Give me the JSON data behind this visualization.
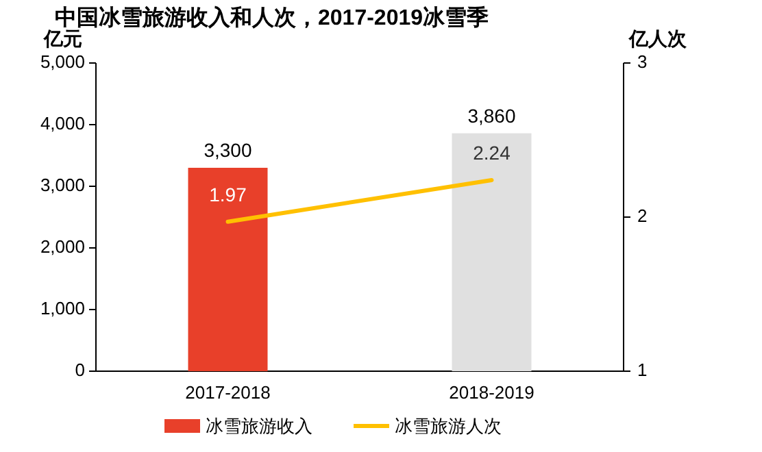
{
  "chart_data": {
    "type": "bar",
    "title": "中国冰雪旅游收入和人次，2017-2019冰雪季",
    "ylabel": "亿元",
    "y2label": "亿人次",
    "categories": [
      "2017-2018",
      "2018-2019"
    ],
    "series": [
      {
        "name": "冰雪旅游收入",
        "type": "bar",
        "color": "#e8402a",
        "colors": [
          "#e8402a",
          "#e0e0e0"
        ],
        "values": [
          3300,
          3860
        ],
        "value_labels": [
          "3,300",
          "3,860"
        ]
      },
      {
        "name": "冰雪旅游人次",
        "type": "line",
        "axis": "y2",
        "color": "#ffc000",
        "values": [
          1.97,
          2.24
        ],
        "value_labels": [
          "1.97",
          "2.24"
        ]
      }
    ],
    "ylim": [
      0,
      5000
    ],
    "yticks": [
      0,
      {
        "value": 1000,
        "label": "1,000"
      },
      {
        "value": 2000,
        "label": "2,000"
      },
      {
        "value": 3000,
        "label": "3,000"
      },
      {
        "value": 4000,
        "label": "4,000"
      },
      {
        "value": 5000,
        "label": "5,000"
      }
    ],
    "y2lim": [
      1,
      3
    ],
    "y2ticks": [
      1,
      2,
      3
    ],
    "legend": "bottom"
  }
}
